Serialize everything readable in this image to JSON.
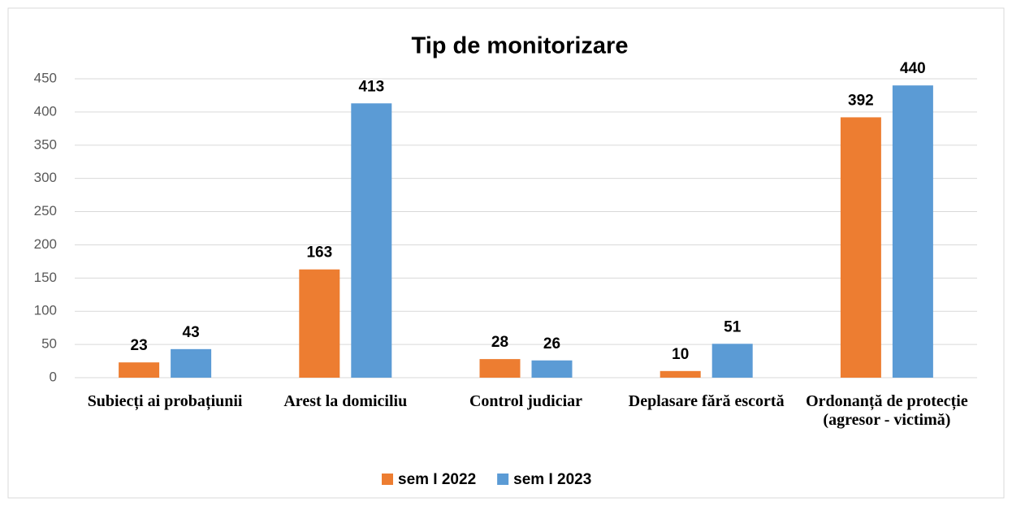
{
  "chart_data": {
    "type": "bar",
    "title": "Tip de monitorizare",
    "categories": [
      "Subiecți ai probațiunii",
      "Arest la domiciliu",
      "Control judiciar",
      "Deplasare fără escortă",
      "Ordonanță de protecție (agresor - victimă)"
    ],
    "series": [
      {
        "name": "sem I 2022",
        "color": "#ed7d31",
        "values": [
          23,
          163,
          28,
          10,
          392
        ]
      },
      {
        "name": "sem I 2023",
        "color": "#5b9bd5",
        "values": [
          43,
          413,
          26,
          51,
          440
        ]
      }
    ],
    "ylim": [
      0,
      450
    ],
    "yticks": [
      0,
      50,
      100,
      150,
      200,
      250,
      300,
      350,
      400,
      450
    ],
    "grid": true,
    "legend": "bottom"
  }
}
